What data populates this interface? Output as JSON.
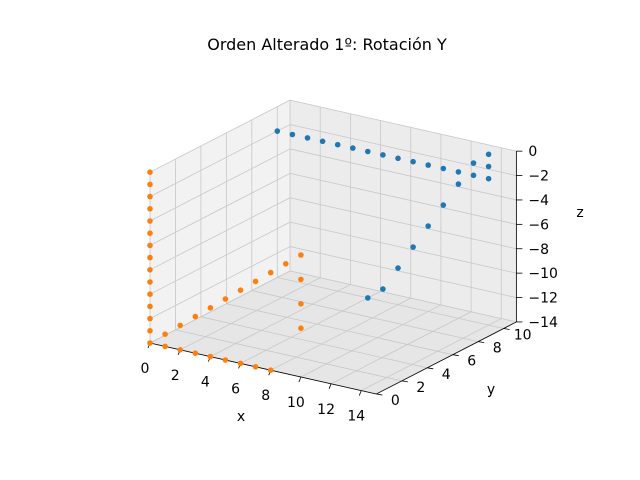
{
  "chart_data": {
    "type": "scatter",
    "projection": "3d",
    "title": "Orden Alterado 1º: Rotación Y",
    "xlabel": "x",
    "ylabel": "y",
    "zlabel": "z",
    "xlim": [
      0,
      15
    ],
    "ylim": [
      0,
      11
    ],
    "zlim": [
      -14,
      0
    ],
    "xticks": [
      "0",
      "2",
      "4",
      "6",
      "8",
      "10",
      "12",
      "14"
    ],
    "yticks": [
      "0",
      "2",
      "4",
      "6",
      "8",
      "10"
    ],
    "zticks": [
      "0",
      "−2",
      "−4",
      "−6",
      "−8",
      "−10",
      "−12",
      "−14"
    ],
    "grid": true,
    "series": [
      {
        "color": "#1f77b4",
        "points": [
          [
            0,
            10,
            -2
          ],
          [
            1,
            10,
            -2
          ],
          [
            2,
            10,
            -2
          ],
          [
            3,
            10,
            -2
          ],
          [
            4,
            10,
            -2
          ],
          [
            5,
            10,
            -2
          ],
          [
            6,
            10,
            -2
          ],
          [
            7,
            10,
            -2
          ],
          [
            8,
            10,
            -2
          ],
          [
            9,
            10,
            -2
          ],
          [
            10,
            10,
            -2
          ],
          [
            11,
            10,
            -2
          ],
          [
            12,
            10,
            -2
          ],
          [
            13,
            10,
            -2
          ],
          [
            14,
            10,
            -2
          ],
          [
            14,
            10,
            -1
          ],
          [
            14,
            10,
            0
          ],
          [
            13,
            10,
            -1
          ],
          [
            12,
            10,
            -3
          ],
          [
            11,
            10,
            -5
          ],
          [
            10,
            10,
            -7
          ],
          [
            9,
            10,
            -9
          ],
          [
            8,
            10,
            -11
          ],
          [
            7,
            10,
            -13
          ],
          [
            6,
            10,
            -14
          ]
        ]
      },
      {
        "color": "#ff7f0e",
        "points": [
          [
            0,
            0,
            0
          ],
          [
            0,
            0,
            -1
          ],
          [
            0,
            0,
            -2
          ],
          [
            0,
            0,
            -3
          ],
          [
            0,
            0,
            -4
          ],
          [
            0,
            0,
            -5
          ],
          [
            0,
            0,
            -6
          ],
          [
            0,
            0,
            -7
          ],
          [
            0,
            0,
            -8
          ],
          [
            0,
            0,
            -9
          ],
          [
            0,
            0,
            -10
          ],
          [
            0,
            0,
            -11
          ],
          [
            0,
            0,
            -12
          ],
          [
            0,
            0,
            -13
          ],
          [
            0,
            0,
            -14
          ],
          [
            1,
            0,
            -14
          ],
          [
            2,
            0,
            -14
          ],
          [
            3,
            0,
            -14
          ],
          [
            4,
            0,
            -14
          ],
          [
            5,
            0,
            -14
          ],
          [
            6,
            0,
            -14
          ],
          [
            7,
            0,
            -14
          ],
          [
            8,
            0,
            -14
          ],
          [
            1,
            0,
            -13
          ],
          [
            2,
            0,
            -12
          ],
          [
            3,
            0,
            -11
          ],
          [
            4,
            0,
            -10
          ],
          [
            5,
            0,
            -9
          ],
          [
            6,
            0,
            -8
          ],
          [
            7,
            0,
            -7
          ],
          [
            8,
            0,
            -6
          ],
          [
            9,
            0,
            -5
          ],
          [
            10,
            0,
            -4
          ],
          [
            10,
            0,
            -6
          ],
          [
            10,
            0,
            -8
          ],
          [
            10,
            0,
            -10
          ]
        ]
      }
    ]
  }
}
